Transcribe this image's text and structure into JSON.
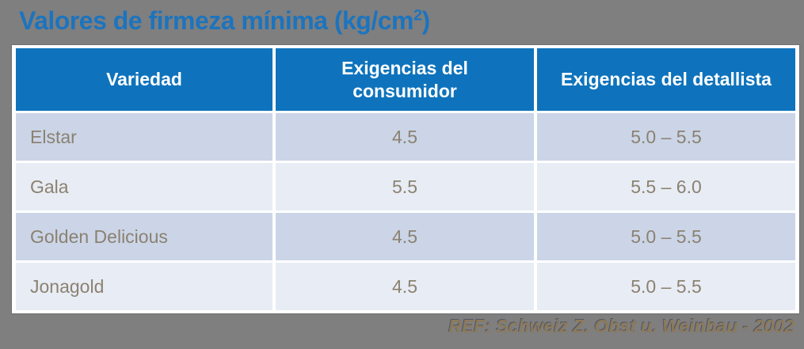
{
  "title": {
    "main": "Valores de firmeza mínima (kg/cm",
    "sup": "2",
    "close": ")"
  },
  "table": {
    "columns": [
      "Variedad",
      "Exigencias del consumidor",
      "Exigencias del detallista"
    ],
    "rows": [
      {
        "variety": "Elstar",
        "consumer": "4.5",
        "retailer": "5.0 – 5.5"
      },
      {
        "variety": "Gala",
        "consumer": "5.5",
        "retailer": "5.5 – 6.0"
      },
      {
        "variety": "Golden Delicious",
        "consumer": "4.5",
        "retailer": "5.0 – 5.5"
      },
      {
        "variety": "Jonagold",
        "consumer": "4.5",
        "retailer": "5.0 – 5.5"
      }
    ]
  },
  "footer": {
    "reference": "REF: Schweiz Z. Obst u. Weinbau - 2002"
  },
  "colors": {
    "background": "#7f7f7f",
    "title_text": "#1c74be",
    "header_fill": "#0e73bc",
    "header_text": "#ffffff",
    "row_odd_fill": "#cbd5e7",
    "row_even_fill": "#e8ecf4",
    "cell_text": "#8b8171",
    "reference_text": "#8b7a5c"
  }
}
